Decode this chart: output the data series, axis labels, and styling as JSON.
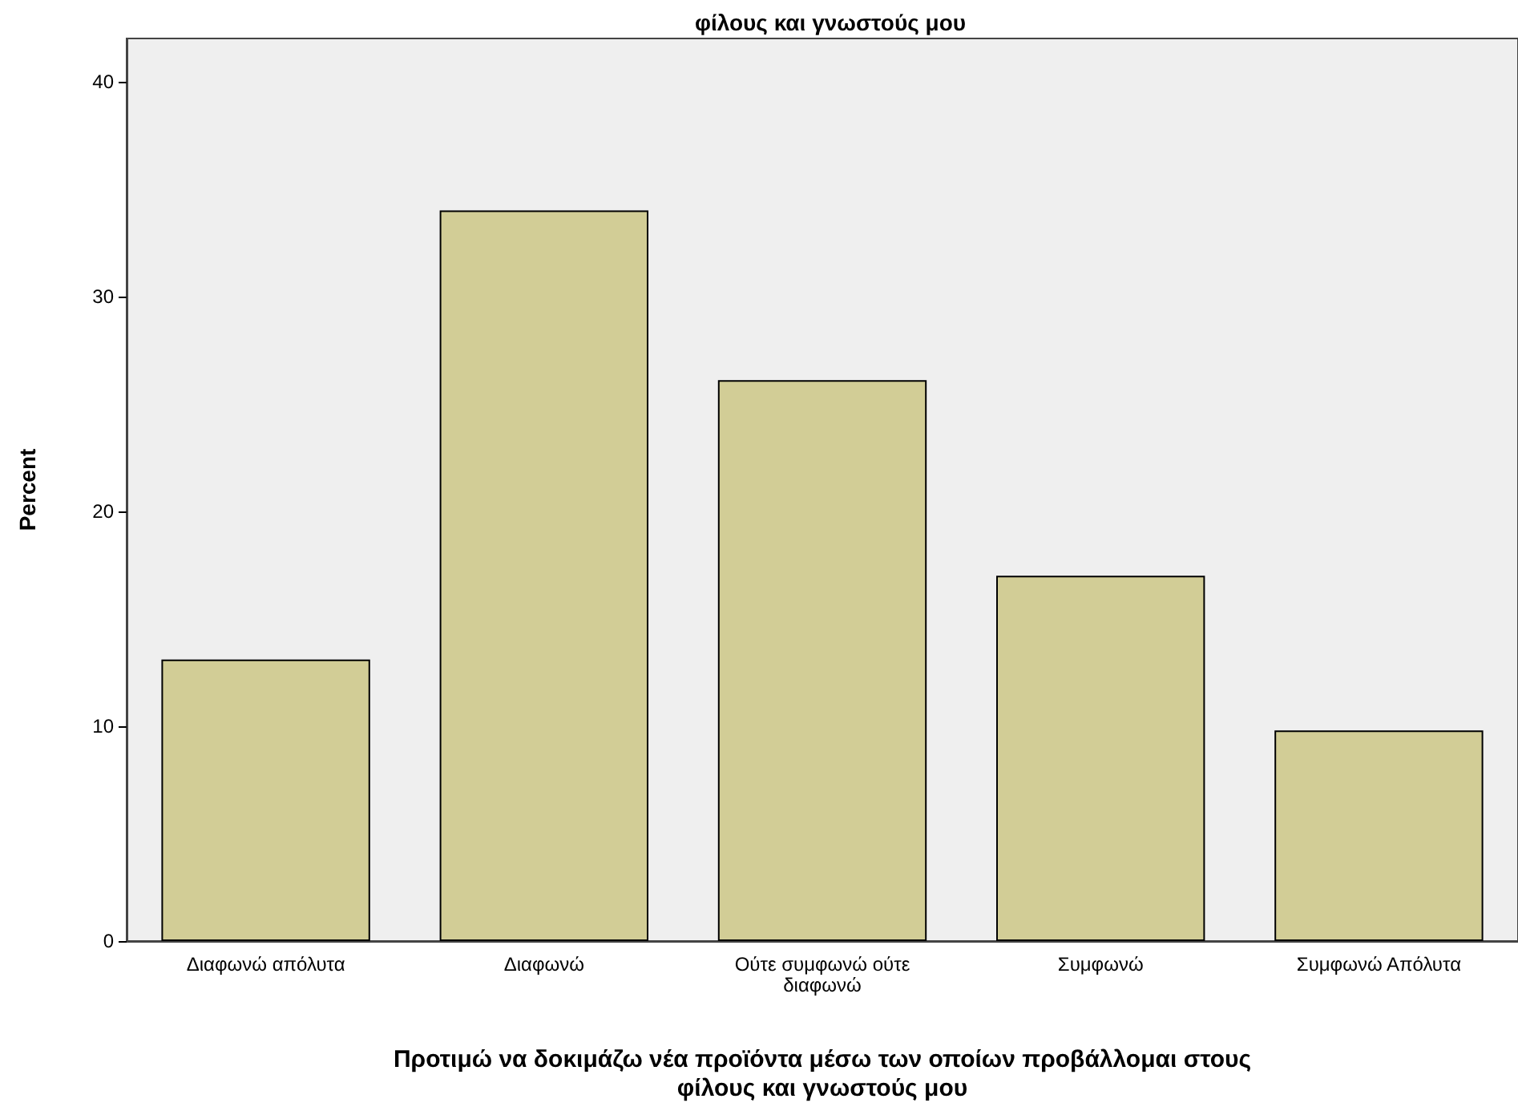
{
  "chart_data": {
    "type": "bar",
    "title": "φίλους και γνωστούς μου",
    "xlabel": "Προτιμώ να δοκιμάζω νέα προϊόντα μέσω των οποίων προβάλλομαι στους\nφίλους και γνωστούς μου",
    "ylabel": "Percent",
    "categories": [
      "Διαφωνώ απόλυτα",
      "Διαφωνώ",
      "Ούτε συμφωνώ ούτε\nδιαφωνώ",
      "Συμφωνώ",
      "Συμφωνώ Απόλυτα"
    ],
    "values": [
      13.1,
      34.0,
      26.1,
      17.0,
      9.8
    ],
    "color": "#d2cd96",
    "ylim": [
      0,
      42
    ],
    "yticks": [
      0,
      10,
      20,
      30,
      40
    ],
    "grid": false
  }
}
